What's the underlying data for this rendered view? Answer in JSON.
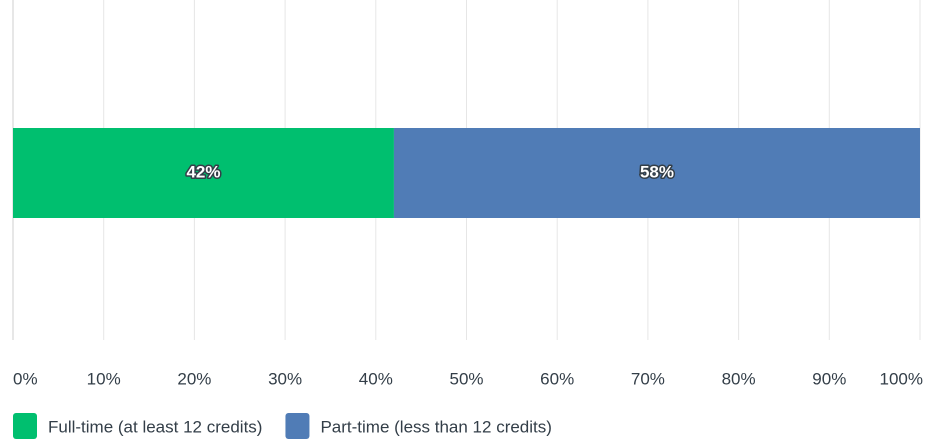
{
  "chart_data": {
    "type": "stacked_bar_horizontal",
    "series": [
      {
        "name": "Full-time (at least 12 credits)",
        "color": "#00bf6f",
        "values": [
          42
        ],
        "value_labels": [
          "42%"
        ]
      },
      {
        "name": "Part-time (less than 12 credits)",
        "color": "#507cb6",
        "values": [
          58
        ],
        "value_labels": [
          "58%"
        ]
      }
    ],
    "xlim": [
      0,
      100
    ],
    "xticks": [
      {
        "value": 0,
        "label": "0%"
      },
      {
        "value": 10,
        "label": "10%"
      },
      {
        "value": 20,
        "label": "20%"
      },
      {
        "value": 30,
        "label": "30%"
      },
      {
        "value": 40,
        "label": "40%"
      },
      {
        "value": 50,
        "label": "50%"
      },
      {
        "value": 60,
        "label": "60%"
      },
      {
        "value": 70,
        "label": "70%"
      },
      {
        "value": 80,
        "label": "80%"
      },
      {
        "value": 90,
        "label": "90%"
      },
      {
        "value": 100,
        "label": "100%"
      }
    ],
    "grid": true,
    "legend": "bottom-left"
  }
}
